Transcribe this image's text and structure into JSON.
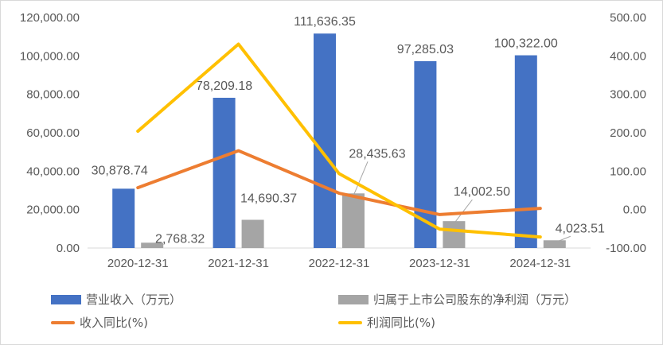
{
  "chart_data": {
    "type": "bar",
    "categories": [
      "2020-12-31",
      "2021-12-31",
      "2022-12-31",
      "2023-12-31",
      "2024-12-31"
    ],
    "series": [
      {
        "name": "营业收入（万元）",
        "kind": "bar",
        "axis": "left",
        "color": "#4472C4",
        "values": [
          30878.74,
          78209.18,
          111636.35,
          97285.03,
          100322.0
        ],
        "labels": [
          "30,878.74",
          "78,209.18",
          "111,636.35",
          "97,285.03",
          "100,322.00"
        ]
      },
      {
        "name": "归属于上市公司股东的净利润（万元）",
        "kind": "bar",
        "axis": "left",
        "color": "#A5A5A5",
        "values": [
          2768.32,
          14690.37,
          28435.63,
          14002.5,
          4023.51
        ],
        "labels": [
          "2,768.32",
          "14,690.37",
          "28,435.63",
          "14,002.50",
          "4,023.51"
        ]
      },
      {
        "name": "收入同比(%)",
        "kind": "line",
        "axis": "right",
        "color": "#ED7D31",
        "values": [
          57,
          153.3,
          42.7,
          -12.9,
          3.1
        ]
      },
      {
        "name": "利润同比(%)",
        "kind": "line",
        "axis": "right",
        "color": "#FFC000",
        "values": [
          204,
          430.7,
          93.6,
          -50.8,
          -71.3
        ]
      }
    ],
    "left_axis": {
      "range": [
        0,
        120000
      ],
      "ticks": [
        "0.00",
        "20,000.00",
        "40,000.00",
        "60,000.00",
        "80,000.00",
        "100,000.00",
        "120,000.00"
      ]
    },
    "right_axis": {
      "range": [
        -100,
        500
      ],
      "ticks": [
        "-100.00",
        "0.00",
        "100.00",
        "200.00",
        "300.00",
        "400.00",
        "500.00"
      ]
    },
    "legend_position": "bottom",
    "grid": false
  }
}
